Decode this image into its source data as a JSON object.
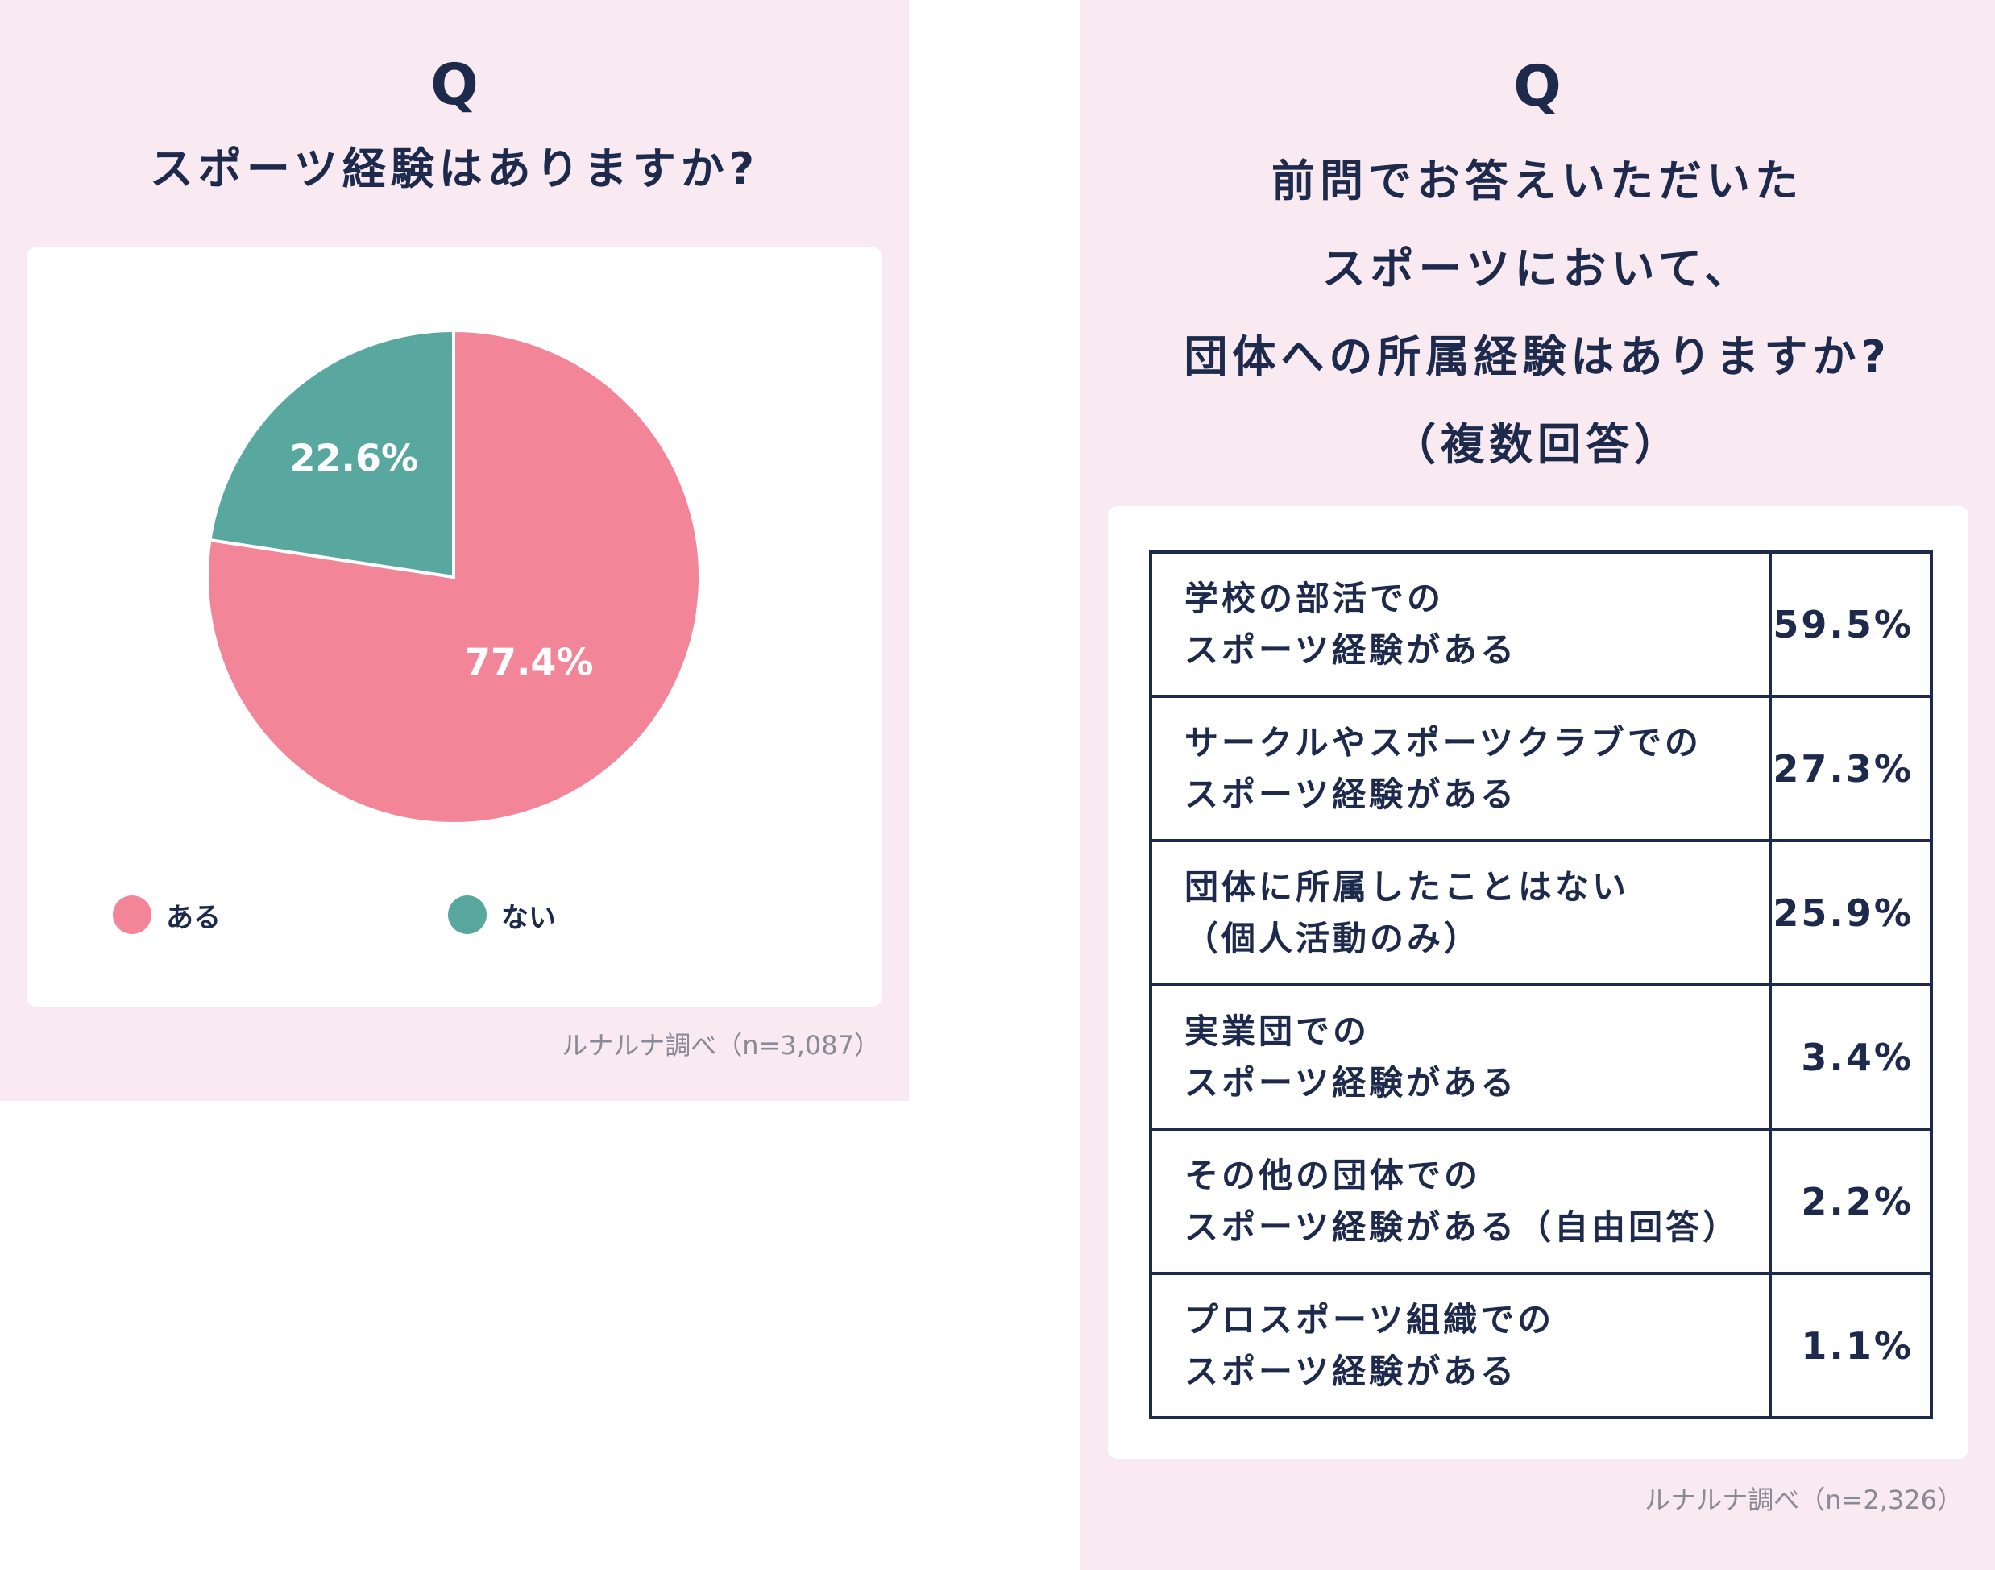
{
  "left": {
    "q_mark": "Q",
    "title": "スポーツ経験はありますか?",
    "legend": [
      {
        "label": "ある",
        "color": "#f28598"
      },
      {
        "label": "ない",
        "color": "#58a8a0"
      }
    ],
    "source": "ルナルナ調べ（n=3,087）"
  },
  "right": {
    "q_mark": "Q",
    "title_lines": [
      "前問でお答えいただいた",
      "スポーツにおいて、",
      "団体への所属経験はありますか?",
      "（複数回答）"
    ],
    "source": "ルナルナ調べ（n=2,326）"
  },
  "chart_data": [
    {
      "type": "pie",
      "title": "スポーツ経験はありますか?",
      "categories": [
        "ある",
        "ない"
      ],
      "values": [
        77.4,
        22.6
      ],
      "labels": [
        "77.4%",
        "22.6%"
      ],
      "colors": [
        "#f28598",
        "#58a8a0"
      ],
      "legend_placement": "bottom"
    },
    {
      "type": "table",
      "title": "前問でお答えいただいたスポーツにおいて、団体への所属経験はありますか?（複数回答）",
      "rows": [
        {
          "label_lines": [
            "学校の部活での",
            "スポーツ経験がある"
          ],
          "value": "59.5%"
        },
        {
          "label_lines": [
            "サークルやスポーツクラブでの",
            "スポーツ経験がある"
          ],
          "value": "27.3%"
        },
        {
          "label_lines": [
            "団体に所属したことはない",
            "（個人活動のみ）"
          ],
          "value": "25.9%"
        },
        {
          "label_lines": [
            "実業団での",
            "スポーツ経験がある"
          ],
          "value": "3.4%"
        },
        {
          "label_lines": [
            "その他の団体での",
            "スポーツ経験がある（自由回答）"
          ],
          "value": "2.2%"
        },
        {
          "label_lines": [
            "プロスポーツ組織での",
            "スポーツ経験がある"
          ],
          "value": "1.1%"
        }
      ]
    }
  ]
}
